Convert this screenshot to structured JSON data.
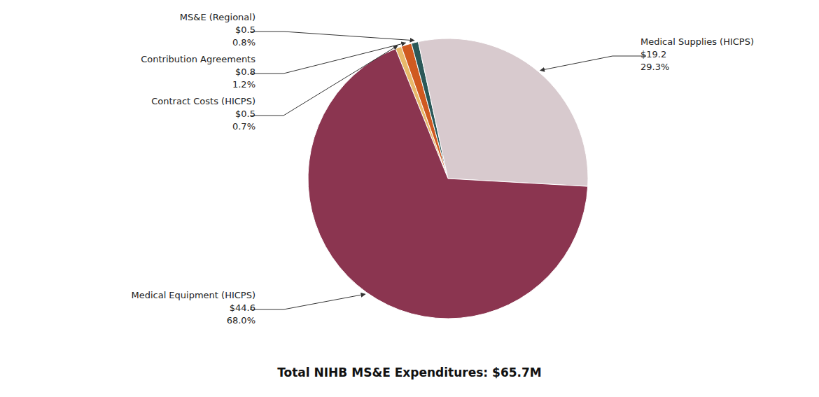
{
  "chart_data": {
    "type": "pie",
    "title": "Total NIHB MS&E Expenditures: $65.7M",
    "categories": [
      "Contract Costs (HICPS)",
      "Contribution Agreements",
      "MS&E (Regional)",
      "Medical Supplies (HICPS)",
      "Medical Equipment (HICPS)"
    ],
    "values": [
      0.7,
      1.2,
      0.8,
      29.3,
      68.0
    ],
    "value_labels": [
      "0.7%",
      "1.2%",
      "0.8%",
      "29.3%",
      "68.0%"
    ],
    "dollars": [
      0.5,
      0.8,
      0.5,
      19.2,
      44.6
    ],
    "dollar_labels": [
      "$0.5",
      "$0.8",
      "$0.5",
      "$19.2",
      "$44.6"
    ],
    "colors": [
      "#E8B96A",
      "#D05A20",
      "#2B5858",
      "#D8CACE",
      "#8B3550"
    ],
    "data_labels": true
  }
}
